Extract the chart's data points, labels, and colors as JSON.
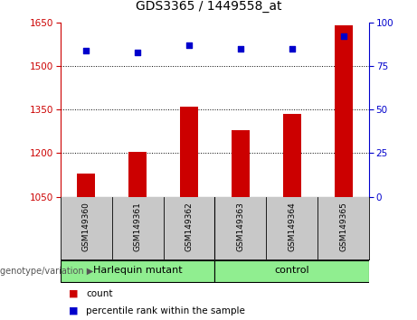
{
  "title": "GDS3365 / 1449558_at",
  "samples": [
    "GSM149360",
    "GSM149361",
    "GSM149362",
    "GSM149363",
    "GSM149364",
    "GSM149365"
  ],
  "counts": [
    1130,
    1205,
    1360,
    1280,
    1335,
    1640
  ],
  "percentile_ranks": [
    84,
    83,
    87,
    85,
    85,
    92
  ],
  "group_info": [
    {
      "start": 0,
      "end": 2,
      "label": "Harlequin mutant"
    },
    {
      "start": 3,
      "end": 5,
      "label": "control"
    }
  ],
  "ylim_left": [
    1050,
    1650
  ],
  "ylim_right": [
    0,
    100
  ],
  "yticks_left": [
    1050,
    1200,
    1350,
    1500,
    1650
  ],
  "yticks_right": [
    0,
    25,
    50,
    75,
    100
  ],
  "bar_color": "#CC0000",
  "dot_color": "#0000CC",
  "background_color": "#FFFFFF",
  "gray_cell_color": "#C8C8C8",
  "green_color": "#90EE90",
  "legend_bar_label": "count",
  "legend_dot_label": "percentile rank within the sample",
  "genotype_label": "genotype/variation"
}
